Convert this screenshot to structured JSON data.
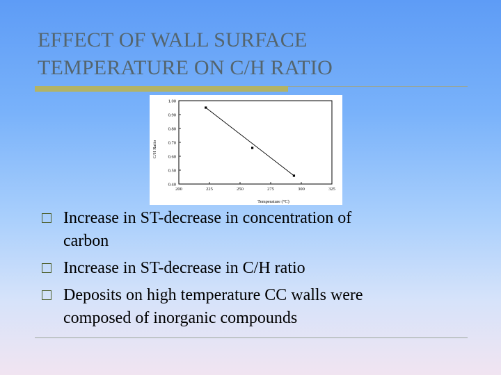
{
  "slide": {
    "title_lines": [
      "EFFECT OF WALL SURFACE",
      "TEMPERATURE ON C/H RATIO"
    ],
    "bullets": [
      {
        "lines": [
          "Increase in ST-decrease in concentration of",
          "carbon"
        ]
      },
      {
        "lines": [
          "Increase in ST-decrease in C/H ratio"
        ]
      },
      {
        "lines": [
          "Deposits on high temperature CC walls were",
          "composed of inorganic compounds"
        ]
      }
    ],
    "colors": {
      "title": "#54656e",
      "accent_bar": "#b2b366",
      "bullet_box": "#4d5f2b"
    }
  },
  "chart_data": {
    "type": "scatter",
    "xlabel": "Temperature (°C)",
    "ylabel": "C/H Ratio",
    "xlim": [
      200,
      325
    ],
    "ylim": [
      0.4,
      1.0
    ],
    "x_ticks": [
      200,
      225,
      250,
      275,
      300,
      325
    ],
    "x_tick_labels": [
      "200",
      "225",
      "250",
      "275",
      "300",
      "325"
    ],
    "y_ticks": [
      0.4,
      0.5,
      0.6,
      0.7,
      0.8,
      0.9,
      1.0
    ],
    "y_tick_labels": [
      "0.40",
      "0.50",
      "0.60",
      "0.70",
      "0.80",
      "0.90",
      "1.00"
    ],
    "points": {
      "x": [
        222,
        260,
        294
      ],
      "y": [
        0.95,
        0.66,
        0.46
      ]
    },
    "trend_line": {
      "x": [
        222,
        294
      ],
      "y": [
        0.95,
        0.46
      ]
    },
    "grid": false
  }
}
